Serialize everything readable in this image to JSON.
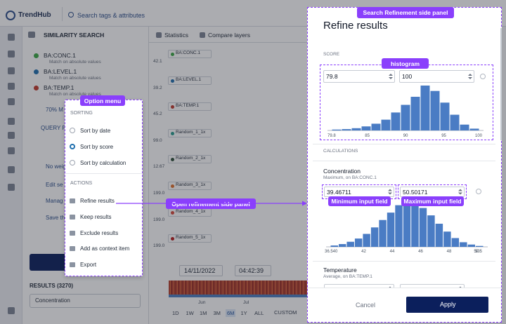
{
  "top_bar": {
    "logo": "TrendHub",
    "search": "Search tags & attributes"
  },
  "left_panel": {
    "title": "SIMILARITY SEARCH",
    "tags": [
      {
        "name": "BA:CONC.1",
        "detail": "Match on absolute values",
        "color": "#3aa845"
      },
      {
        "name": "BA:LEVEL.1",
        "detail": "Match on absolute values",
        "color": "#1f6fae"
      },
      {
        "name": "BA:TEMP.1",
        "detail": "Match on absolute values",
        "color": "#c0392b"
      }
    ],
    "truncated_items": [
      "70% M",
      "QUERY P",
      "No weig",
      "Edit se",
      "Manag",
      "Save th"
    ],
    "results": "RESULTS (3270)",
    "sort_field": "Concentration"
  },
  "trend_view": {
    "tabs": [
      "Statistics",
      "Compare layers"
    ],
    "lanes": [
      {
        "name": "BA:CONC.1",
        "top_value": "42.1",
        "color": "#3aa845"
      },
      {
        "name": "BA:LEVEL.1",
        "top_value": "39.2",
        "color": "#1f6fae"
      },
      {
        "name": "BA:TEMP.1",
        "top_value": "45.2",
        "color": "#c0392b"
      },
      {
        "name": "Random_1_1x",
        "top_value": "99.0",
        "color": "#2a9d8f"
      },
      {
        "name": "Random_2_1x",
        "top_value": "12.67",
        "color": "#2f4f3a"
      },
      {
        "name": "Random_3_1x",
        "top_value": "199.0",
        "color": "#e0702a"
      },
      {
        "name": "Random_4_1x",
        "top_value": "199.0",
        "color": "#d9483b"
      },
      {
        "name": "Random_5_1x",
        "top_value": "199.0",
        "color": "#b71c1c"
      }
    ],
    "date": "14/11/2022",
    "time": "04:42:39",
    "months": [
      "Jun",
      "Jul"
    ],
    "zoom": [
      "1D",
      "1W",
      "1M",
      "3M",
      "6M",
      "1Y",
      "ALL"
    ],
    "active_zoom": 4,
    "custom": "CUSTOM"
  },
  "option_menu": {
    "sections": [
      {
        "title": "SORTING",
        "items": [
          "Sort by date",
          "Sort by score",
          "Sort by calculation"
        ]
      },
      {
        "title": "ACTIONS",
        "items": [
          "Refine results",
          "Keep results",
          "Exclude results",
          "Add as context item",
          "Export"
        ]
      }
    ],
    "selected_sort": 1
  },
  "annotations": {
    "option_menu": "Option menu",
    "open_panel": "Open refinement side panel",
    "side_panel": "Search Refinement side panel",
    "histogram": "histogram",
    "min_field": "Minimum input field",
    "max_field": "Maximum input field"
  },
  "refine_panel": {
    "title": "Refine results",
    "score": {
      "label": "SCORE",
      "min": 79.8,
      "max": 100,
      "histogram": {
        "bars": [
          2,
          3,
          5,
          9,
          15,
          24,
          40,
          57,
          75,
          100,
          88,
          62,
          35,
          13,
          4
        ],
        "axis_labels": [
          79.8,
          85,
          90,
          95,
          100
        ]
      }
    },
    "calculations": {
      "label": "CALCULATIONS",
      "items": [
        {
          "name": "Concentration",
          "detail": "Maximum, on BA:CONC.1",
          "min": 39.46711,
          "max": 50.50171,
          "histogram": {
            "bars": [
              3,
              6,
              11,
              18,
              28,
              42,
              58,
              74,
              90,
              100,
              96,
              84,
              68,
              50,
              33,
              19,
              10,
              5,
              2
            ],
            "axis_labels": [
              36.5,
              40,
              42,
              44,
              46,
              48,
              50,
              50.5
            ]
          }
        },
        {
          "name": "Temperature",
          "detail": "Average, on BA:TEMP.1"
        }
      ]
    },
    "cancel": "Cancel",
    "apply": "Apply"
  }
}
